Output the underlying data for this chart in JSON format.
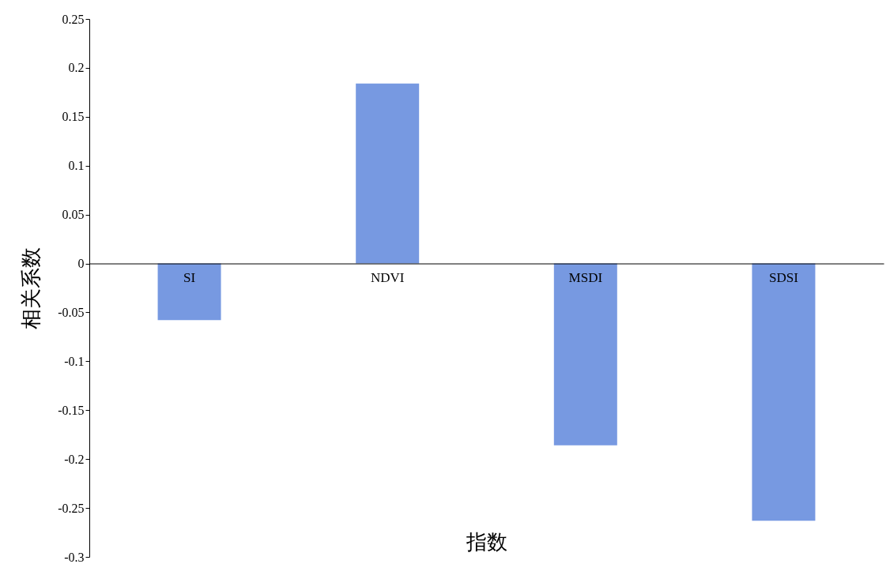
{
  "chart_data": {
    "type": "bar",
    "xlabel": "指数",
    "ylabel": "相关系数",
    "categories": [
      "SI",
      "NDVI",
      "MSDI",
      "SDSI"
    ],
    "values": [
      -0.058,
      0.184,
      -0.186,
      -0.263
    ],
    "color": "#7799e1",
    "ylim": [
      -0.3,
      0.25
    ],
    "yticks": [
      -0.3,
      -0.25,
      -0.2,
      -0.15,
      -0.1,
      -0.05,
      0,
      0.05,
      0.1,
      0.15,
      0.2,
      0.25
    ]
  }
}
